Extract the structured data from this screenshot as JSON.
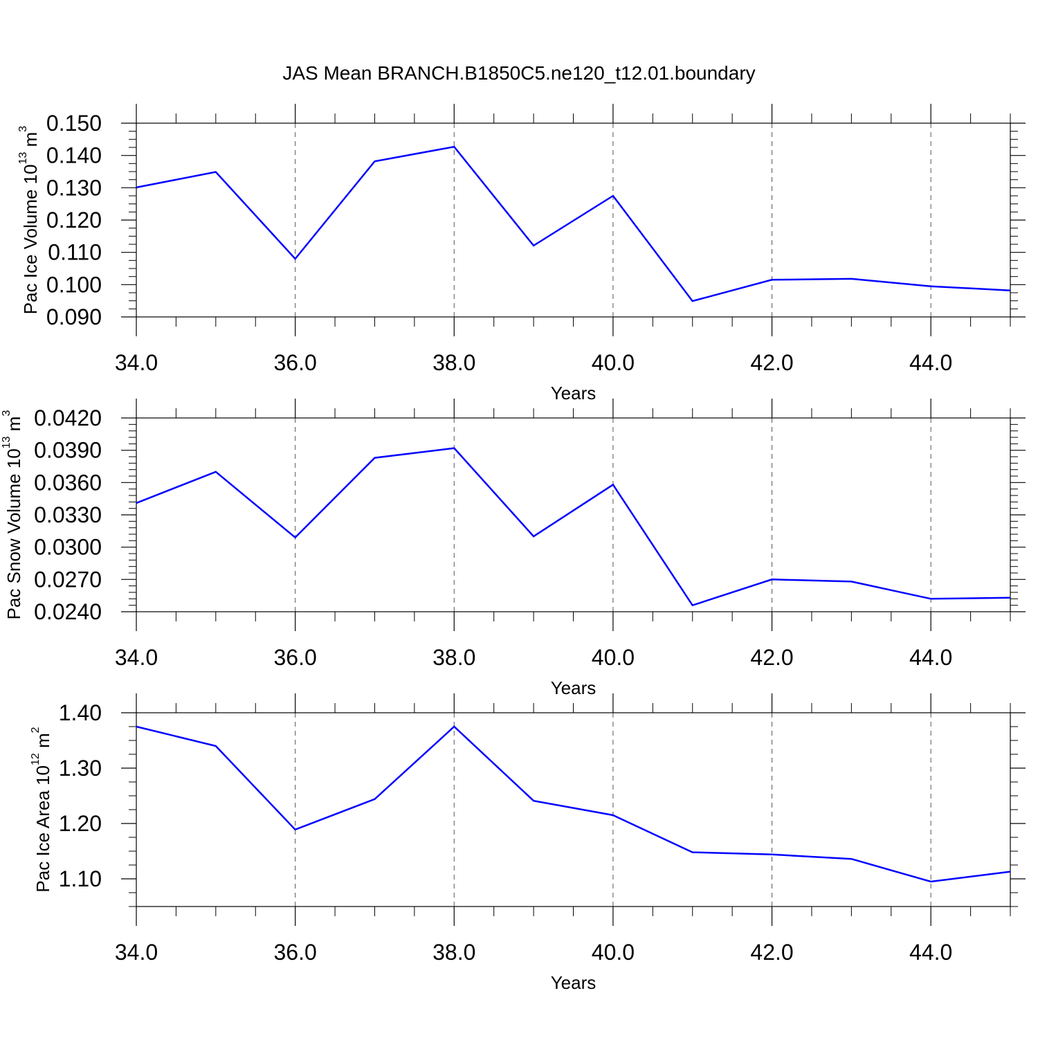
{
  "title": "JAS Mean BRANCH.B1850C5.ne120_t12.01.boundary",
  "chart_data": [
    {
      "type": "line",
      "xlabel": "Years",
      "ylabel_text": "Pac Ice Volume 10",
      "ylabel_exp": "13",
      "ylabel_unit": "m",
      "ylabel_unit_exp": "3",
      "xlim": [
        34,
        45
      ],
      "ylim": [
        0.09,
        0.15
      ],
      "xticks": [
        34,
        36,
        38,
        40,
        42,
        44
      ],
      "xtick_labels": [
        "34.0",
        "36.0",
        "38.0",
        "40.0",
        "42.0",
        "44.0"
      ],
      "yticks": [
        0.09,
        0.1,
        0.11,
        0.12,
        0.13,
        0.14,
        0.15
      ],
      "ytick_labels": [
        "0.090",
        "0.100",
        "0.110",
        "0.120",
        "0.130",
        "0.140",
        "0.150"
      ],
      "x_grid": true,
      "line_color": "#0000ff",
      "series": [
        {
          "x": [
            34,
            35,
            36,
            37,
            38,
            39,
            40,
            41,
            42,
            43,
            44,
            45
          ],
          "values": [
            0.1301,
            0.1349,
            0.108,
            0.1382,
            0.1427,
            0.1121,
            0.1275,
            0.0949,
            0.1015,
            0.1018,
            0.0995,
            0.0982
          ]
        }
      ]
    },
    {
      "type": "line",
      "xlabel": "Years",
      "ylabel_text": "Pac Snow Volume 10",
      "ylabel_exp": "13",
      "ylabel_unit": "m",
      "ylabel_unit_exp": "3",
      "xlim": [
        34,
        45
      ],
      "ylim": [
        0.024,
        0.042
      ],
      "xticks": [
        34,
        36,
        38,
        40,
        42,
        44
      ],
      "xtick_labels": [
        "34.0",
        "36.0",
        "38.0",
        "40.0",
        "42.0",
        "44.0"
      ],
      "yticks": [
        0.024,
        0.027,
        0.03,
        0.033,
        0.036,
        0.039,
        0.042
      ],
      "ytick_labels": [
        "0.0240",
        "0.0270",
        "0.0300",
        "0.0330",
        "0.0360",
        "0.0390",
        "0.0420"
      ],
      "x_grid": true,
      "line_color": "#0000ff",
      "series": [
        {
          "x": [
            34,
            35,
            36,
            37,
            38,
            39,
            40,
            41,
            42,
            43,
            44,
            45
          ],
          "values": [
            0.0341,
            0.037,
            0.0309,
            0.0383,
            0.0392,
            0.031,
            0.0358,
            0.0246,
            0.027,
            0.0268,
            0.0252,
            0.0253
          ]
        }
      ]
    },
    {
      "type": "line",
      "xlabel": "Years",
      "ylabel_text": "Pac Ice Area 10",
      "ylabel_exp": "12",
      "ylabel_unit": "m",
      "ylabel_unit_exp": "2",
      "xlim": [
        34,
        45
      ],
      "ylim": [
        1.05,
        1.4
      ],
      "xticks": [
        34,
        36,
        38,
        40,
        42,
        44
      ],
      "xtick_labels": [
        "34.0",
        "36.0",
        "38.0",
        "40.0",
        "42.0",
        "44.0"
      ],
      "yticks": [
        1.1,
        1.2,
        1.3,
        1.4
      ],
      "ytick_labels": [
        "1.10",
        "1.20",
        "1.30",
        "1.40"
      ],
      "x_grid": true,
      "line_color": "#0000ff",
      "series": [
        {
          "x": [
            34,
            35,
            36,
            37,
            38,
            39,
            40,
            41,
            42,
            43,
            44,
            45
          ],
          "values": [
            1.375,
            1.34,
            1.189,
            1.244,
            1.375,
            1.241,
            1.215,
            1.148,
            1.144,
            1.136,
            1.095,
            1.113
          ]
        }
      ]
    }
  ]
}
